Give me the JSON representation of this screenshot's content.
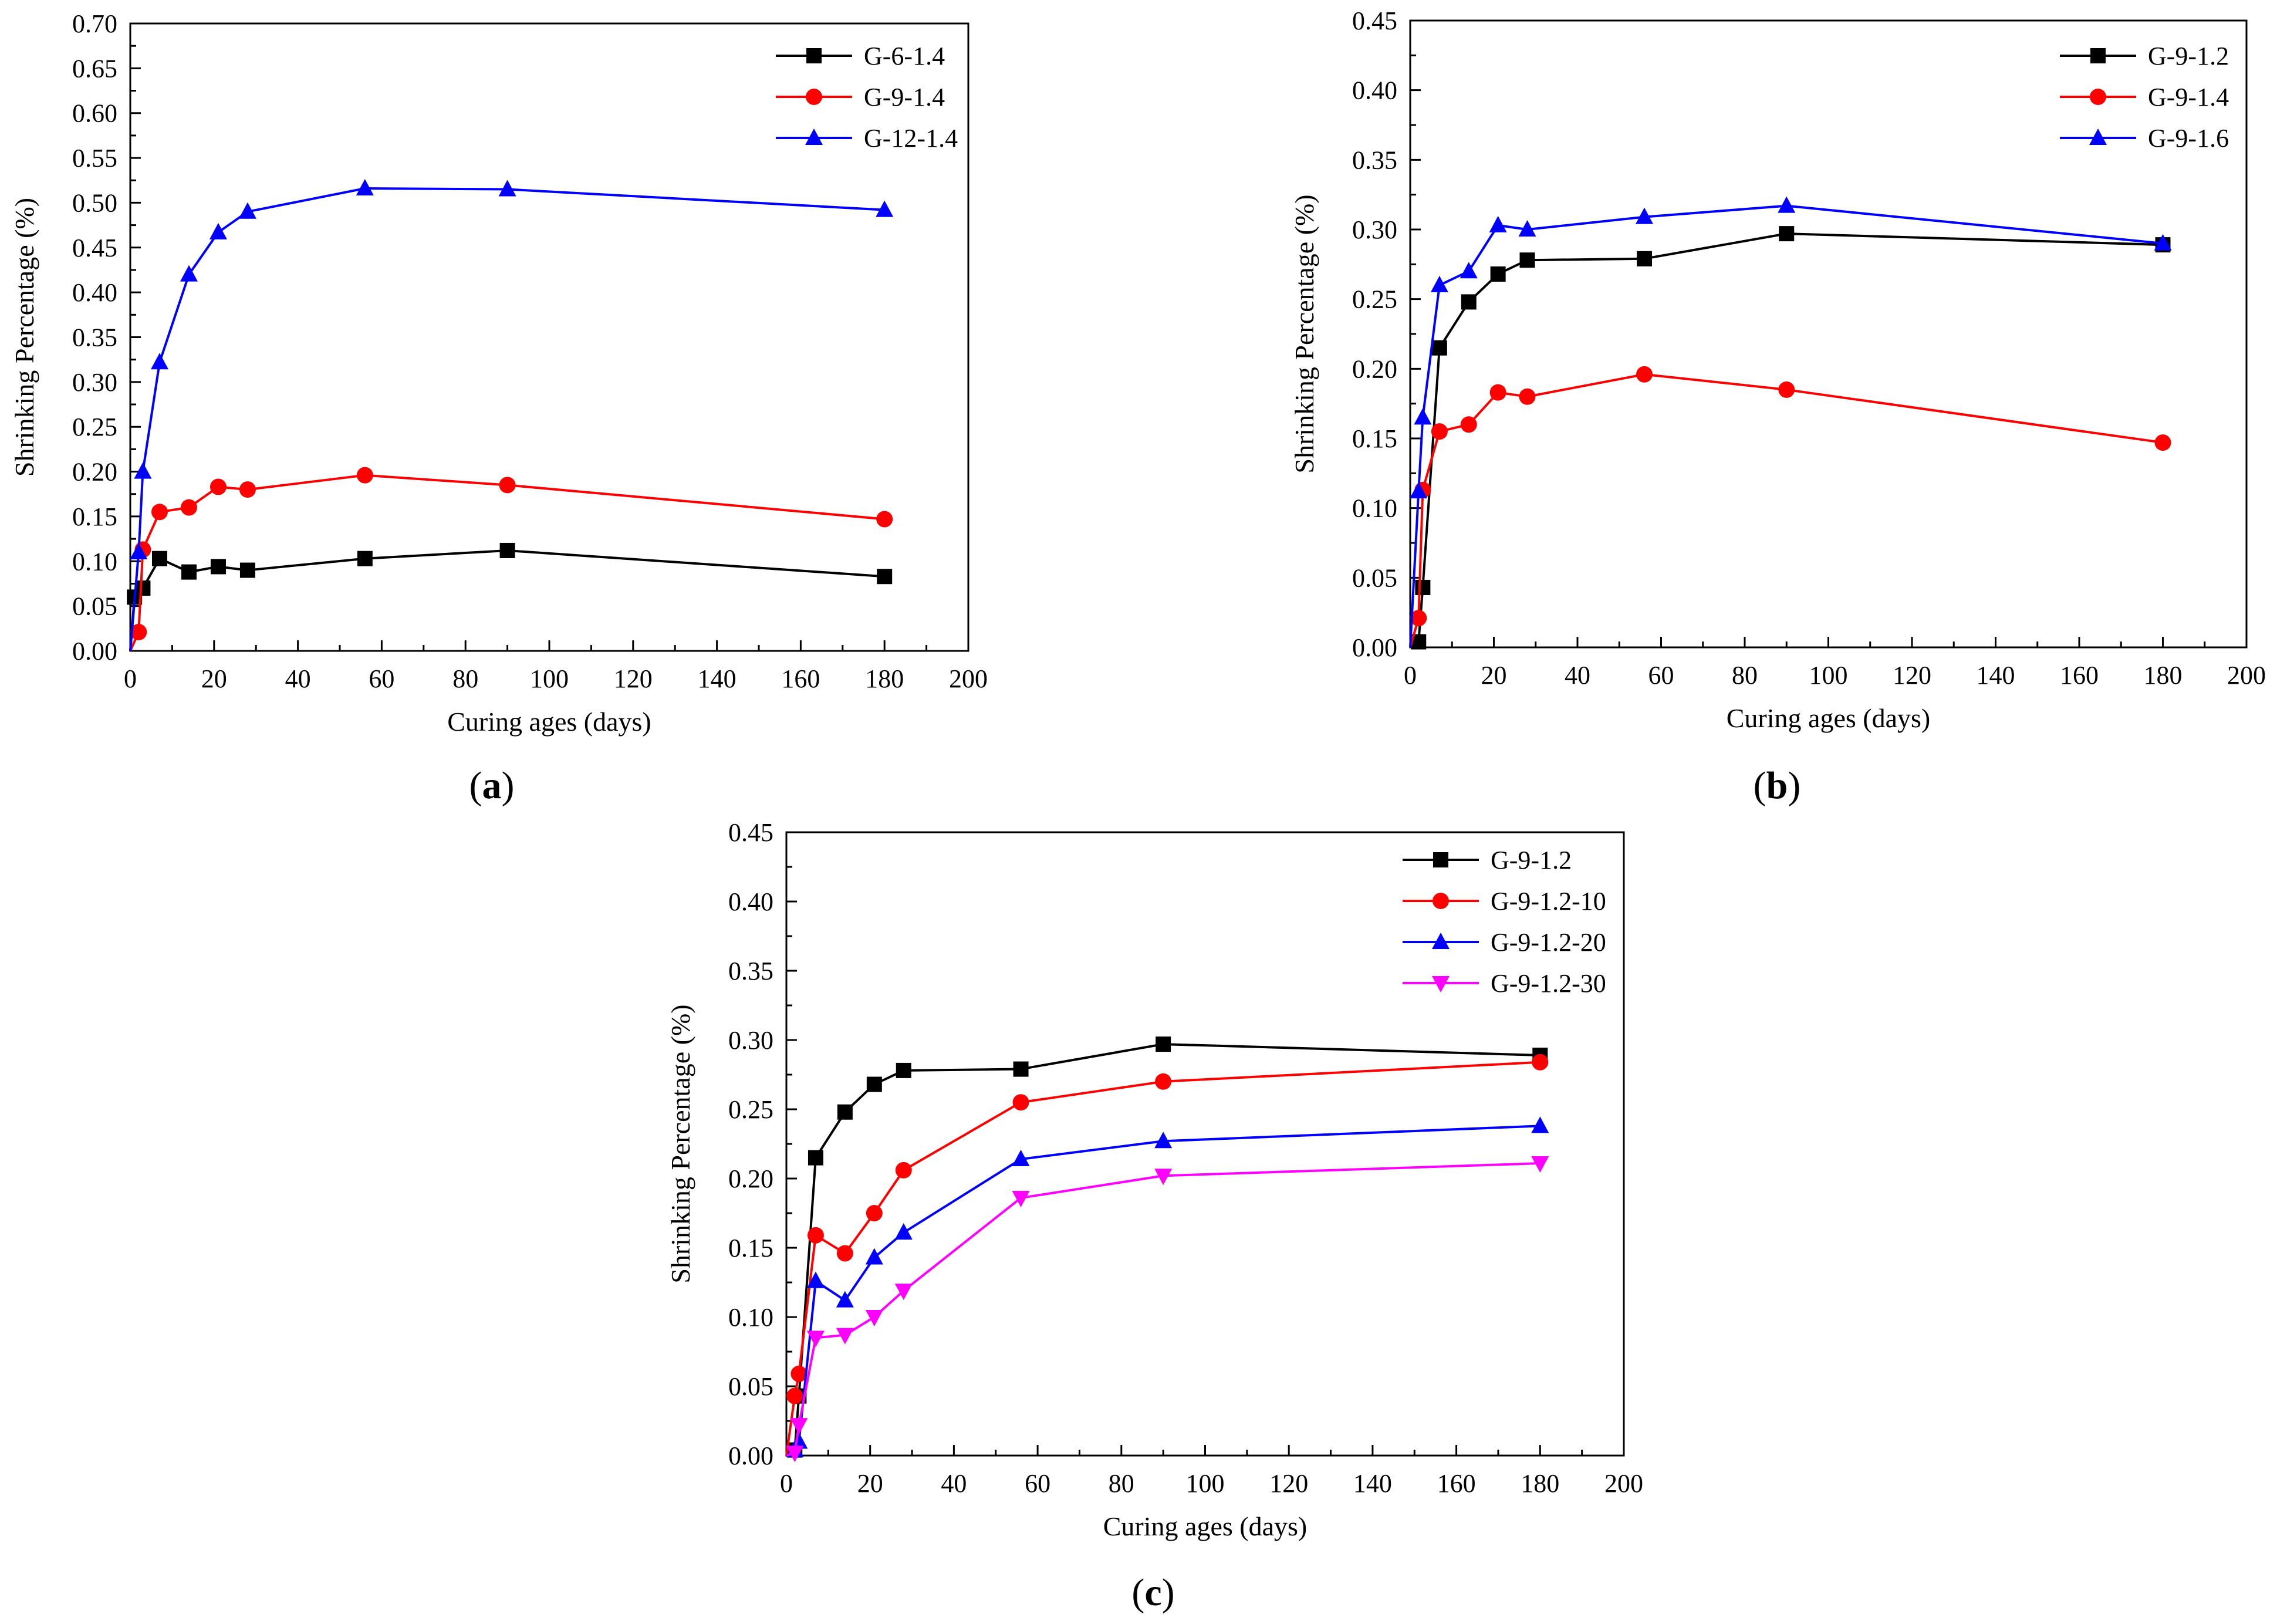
{
  "chart_data": [
    {
      "type": "line",
      "panel": "a",
      "caption": "a",
      "xlabel": "Curing ages (days)",
      "ylabel": "Shrinking Percentage (%)",
      "xlim": [
        0,
        200
      ],
      "ylim": [
        0,
        0.7
      ],
      "xticks": [
        "0",
        "20",
        "40",
        "60",
        "80",
        "100",
        "120",
        "140",
        "160",
        "180",
        "200"
      ],
      "yticks": [
        "0.00",
        "0.05",
        "0.10",
        "0.15",
        "0.20",
        "0.25",
        "0.30",
        "0.35",
        "0.40",
        "0.45",
        "0.50",
        "0.55",
        "0.60",
        "0.65",
        "0.70"
      ],
      "legend_position": "top-right",
      "series": [
        {
          "name": "G-6-1.4",
          "color": "#000000",
          "marker": "square",
          "x": [
            0,
            1,
            3,
            7,
            14,
            21,
            28,
            56,
            90,
            180
          ],
          "y": [
            0.0,
            0.06,
            0.07,
            0.103,
            0.088,
            0.094,
            0.09,
            0.103,
            0.112,
            0.083
          ]
        },
        {
          "name": "G-9-1.4",
          "color": "#ff0000",
          "marker": "circle",
          "x": [
            0,
            2,
            3,
            7,
            14,
            21,
            28,
            56,
            90,
            180
          ],
          "y": [
            0.0,
            0.021,
            0.113,
            0.155,
            0.16,
            0.183,
            0.18,
            0.196,
            0.185,
            0.147
          ]
        },
        {
          "name": "G-12-1.4",
          "color": "#0000ff",
          "marker": "triangle-up",
          "x": [
            0,
            2,
            3,
            7,
            14,
            21,
            28,
            56,
            90,
            180
          ],
          "y": [
            0.0,
            0.11,
            0.2,
            0.322,
            0.42,
            0.467,
            0.49,
            0.516,
            0.515,
            0.492
          ]
        }
      ]
    },
    {
      "type": "line",
      "panel": "b",
      "caption": "b",
      "xlabel": "Curing ages (days)",
      "ylabel": "Shrinking Percentage (%)",
      "xlim": [
        0,
        200
      ],
      "ylim": [
        0,
        0.45
      ],
      "xticks": [
        "0",
        "20",
        "40",
        "60",
        "80",
        "100",
        "120",
        "140",
        "160",
        "180",
        "200"
      ],
      "yticks": [
        "0.00",
        "0.05",
        "0.10",
        "0.15",
        "0.20",
        "0.25",
        "0.30",
        "0.35",
        "0.40",
        "0.45"
      ],
      "legend_position": "top-right",
      "series": [
        {
          "name": "G-9-1.2",
          "color": "#000000",
          "marker": "square",
          "x": [
            0,
            2,
            3,
            7,
            14,
            21,
            28,
            56,
            90,
            180
          ],
          "y": [
            0.0,
            0.004,
            0.043,
            0.215,
            0.248,
            0.268,
            0.278,
            0.279,
            0.297,
            0.289
          ]
        },
        {
          "name": "G-9-1.4",
          "color": "#ff0000",
          "marker": "circle",
          "x": [
            0,
            2,
            3,
            7,
            14,
            21,
            28,
            56,
            90,
            180
          ],
          "y": [
            0.0,
            0.021,
            0.113,
            0.155,
            0.16,
            0.183,
            0.18,
            0.196,
            0.185,
            0.147
          ]
        },
        {
          "name": "G-9-1.6",
          "color": "#0000ff",
          "marker": "triangle-up",
          "x": [
            0,
            2,
            3,
            7,
            14,
            21,
            28,
            56,
            90,
            180
          ],
          "y": [
            0.0,
            0.112,
            0.165,
            0.26,
            0.27,
            0.303,
            0.3,
            0.309,
            0.317,
            0.29
          ]
        }
      ]
    },
    {
      "type": "line",
      "panel": "c",
      "caption": "c",
      "xlabel": "Curing ages (days)",
      "ylabel": "Shrinking Percentage (%)",
      "xlim": [
        0,
        200
      ],
      "ylim": [
        0,
        0.45
      ],
      "xticks": [
        "0",
        "20",
        "40",
        "60",
        "80",
        "100",
        "120",
        "140",
        "160",
        "180",
        "200"
      ],
      "yticks": [
        "0.00",
        "0.05",
        "0.10",
        "0.15",
        "0.20",
        "0.25",
        "0.30",
        "0.35",
        "0.40",
        "0.45"
      ],
      "legend_position": "top-right",
      "series": [
        {
          "name": "G-9-1.2",
          "color": "#000000",
          "marker": "square",
          "x": [
            0,
            2,
            3,
            7,
            14,
            21,
            28,
            56,
            90,
            180
          ],
          "y": [
            0.0,
            0.004,
            0.043,
            0.215,
            0.248,
            0.268,
            0.278,
            0.279,
            0.297,
            0.289
          ]
        },
        {
          "name": "G-9-1.2-10",
          "color": "#ff0000",
          "marker": "circle",
          "x": [
            0,
            2,
            3,
            7,
            14,
            21,
            28,
            56,
            90,
            180
          ],
          "y": [
            0.0,
            0.043,
            0.059,
            0.159,
            0.146,
            0.175,
            0.206,
            0.255,
            0.27,
            0.284
          ]
        },
        {
          "name": "G-9-1.2-20",
          "color": "#0000ff",
          "marker": "triangle-up",
          "x": [
            0,
            2,
            3,
            7,
            14,
            21,
            28,
            56,
            90,
            180
          ],
          "y": [
            0.0,
            0.004,
            0.01,
            0.126,
            0.112,
            0.143,
            0.161,
            0.214,
            0.227,
            0.238
          ]
        },
        {
          "name": "G-9-1.2-30",
          "color": "#ff00ff",
          "marker": "triangle-down",
          "x": [
            0,
            2,
            3,
            7,
            14,
            21,
            28,
            56,
            90,
            180
          ],
          "y": [
            0.0,
            0.002,
            0.022,
            0.085,
            0.087,
            0.1,
            0.119,
            0.186,
            0.202,
            0.211
          ]
        }
      ]
    }
  ]
}
